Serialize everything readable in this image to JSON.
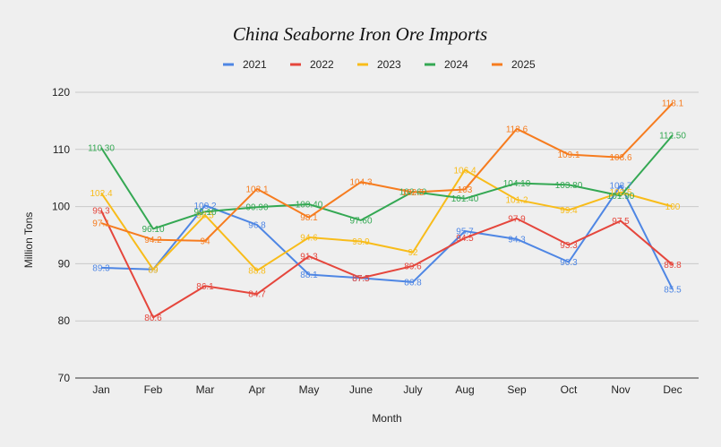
{
  "chart_data": {
    "type": "line",
    "title": "China Seaborne Iron Ore Imports",
    "xlabel": "Month",
    "ylabel": "Million Tons",
    "ylim": [
      70,
      120
    ],
    "yticks": [
      70,
      80,
      90,
      100,
      110,
      120
    ],
    "grid": true,
    "legend_position": "top",
    "categories": [
      "Jan",
      "Feb",
      "Mar",
      "Apr",
      "May",
      "June",
      "July",
      "Aug",
      "Sep",
      "Oct",
      "Nov",
      "Dec"
    ],
    "series": [
      {
        "name": "2021",
        "color": "#4e86e4",
        "values": [
          89.3,
          89,
          100.2,
          96.8,
          88.1,
          87.5,
          86.8,
          95.7,
          94.3,
          90.3,
          103.7,
          85.5
        ],
        "labels": [
          "89.3",
          "89",
          "100.2",
          "96.8",
          "88.1",
          "87.5",
          "86.8",
          "95.7",
          "94.3",
          "90.3",
          "103.7",
          "85.5"
        ]
      },
      {
        "name": "2022",
        "color": "#e5463c",
        "values": [
          99.3,
          80.6,
          86.1,
          84.7,
          91.3,
          87.5,
          89.6,
          94.5,
          97.9,
          93.3,
          97.5,
          89.8
        ],
        "labels": [
          "99.3",
          "80.6",
          "86.1",
          "84.7",
          "91.3",
          "87.5",
          "89.6",
          "94.5",
          "97.9",
          "93.3",
          "97.5",
          "89.8"
        ]
      },
      {
        "name": "2023",
        "color": "#f8bc1a",
        "values": [
          102.4,
          89,
          98.5,
          88.8,
          94.6,
          93.9,
          92,
          106.4,
          101.2,
          99.4,
          102.5,
          100
        ],
        "labels": [
          "102.4",
          "89",
          "98.5",
          "88.8",
          "94.6",
          "93.9",
          "92",
          "106.4",
          "101.2",
          "99.4",
          "102.5",
          "100"
        ]
      },
      {
        "name": "2024",
        "color": "#34a853",
        "values": [
          110.3,
          96.1,
          99.1,
          99.9,
          100.4,
          97.6,
          102.6,
          101.4,
          104.1,
          103.8,
          101.9,
          112.5
        ],
        "labels": [
          "110.30",
          "96.10",
          "99.10",
          "99.90",
          "100.40",
          "97.60",
          "102.60",
          "101.40",
          "104.10",
          "103.80",
          "101.90",
          "112.50"
        ]
      },
      {
        "name": "2025",
        "color": "#f67c1f",
        "values": [
          97.1,
          94.2,
          94,
          103.1,
          98.1,
          104.3,
          102.5,
          103,
          113.6,
          109.1,
          108.6,
          118.1
        ],
        "labels": [
          "97.1",
          "94.2",
          "94",
          "103.1",
          "98.1",
          "104.3",
          "102.5",
          "103",
          "113.6",
          "109.1",
          "108.6",
          "118.1"
        ]
      }
    ]
  }
}
